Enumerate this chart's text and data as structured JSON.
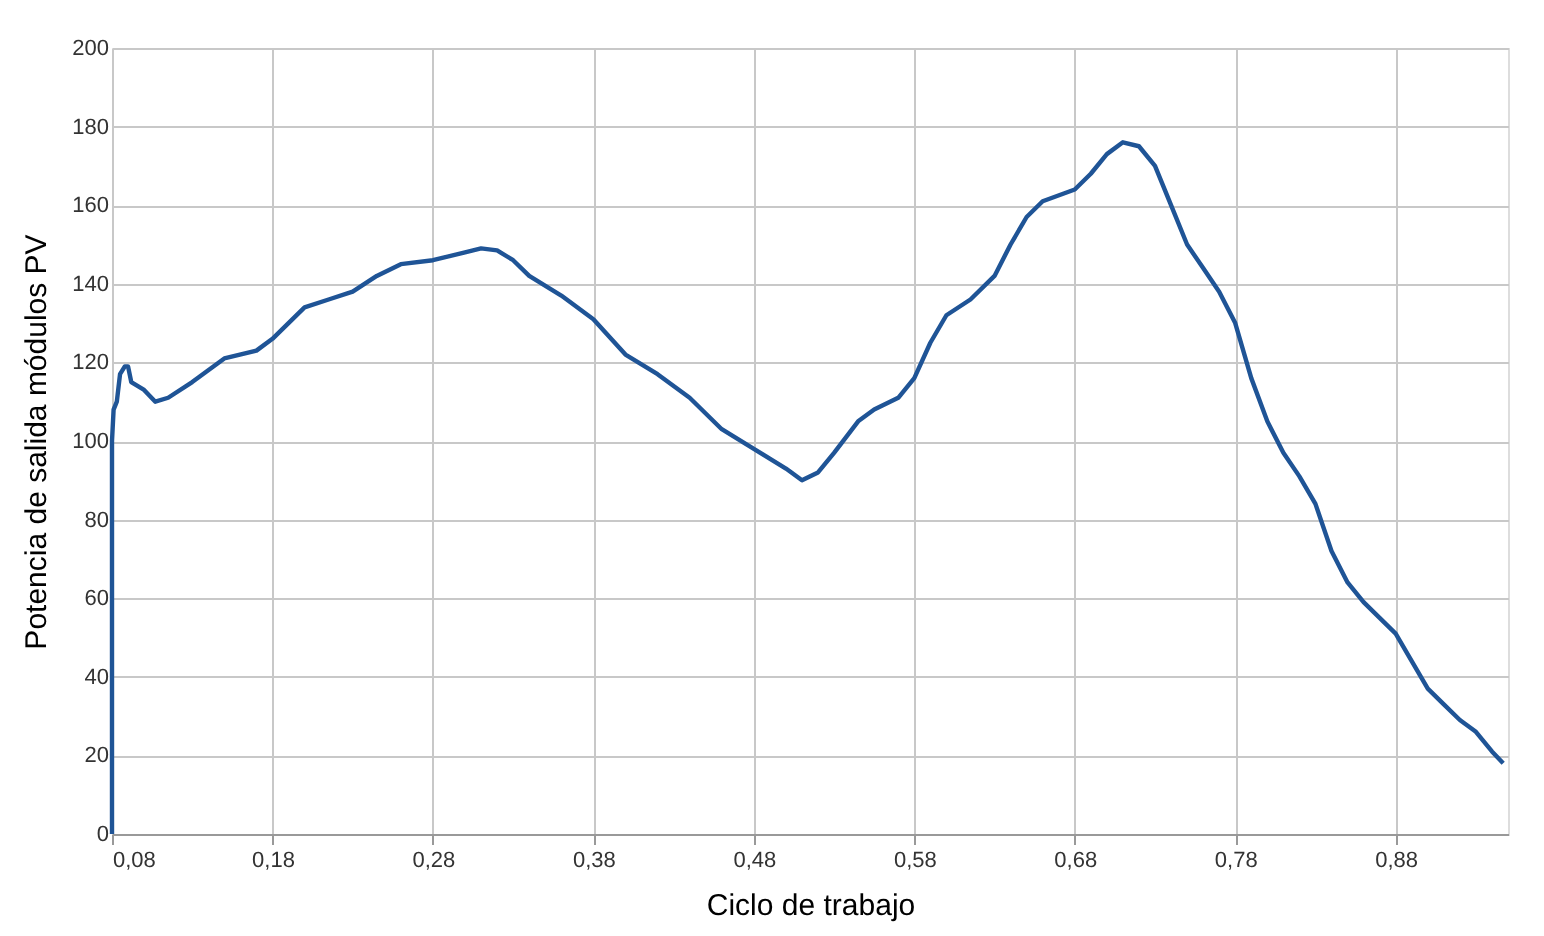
{
  "chart_data": {
    "type": "line",
    "xlabel": "Ciclo de trabajo",
    "ylabel": "Potencia de salida módulos PV",
    "x": [
      0.08,
      0.08,
      0.081,
      0.083,
      0.085,
      0.088,
      0.09,
      0.092,
      0.1,
      0.107,
      0.115,
      0.13,
      0.15,
      0.17,
      0.18,
      0.19,
      0.2,
      0.215,
      0.23,
      0.245,
      0.26,
      0.28,
      0.3,
      0.31,
      0.32,
      0.33,
      0.34,
      0.36,
      0.38,
      0.4,
      0.42,
      0.44,
      0.46,
      0.48,
      0.5,
      0.51,
      0.52,
      0.53,
      0.545,
      0.555,
      0.57,
      0.58,
      0.59,
      0.6,
      0.615,
      0.63,
      0.64,
      0.65,
      0.66,
      0.68,
      0.69,
      0.7,
      0.71,
      0.72,
      0.73,
      0.74,
      0.75,
      0.76,
      0.77,
      0.78,
      0.79,
      0.8,
      0.81,
      0.82,
      0.83,
      0.84,
      0.85,
      0.86,
      0.87,
      0.88,
      0.89,
      0.9,
      0.91,
      0.92,
      0.93,
      0.94,
      0.947
    ],
    "series": [
      {
        "color": "#1f5496",
        "values": [
          0,
          100,
          108,
          110,
          117,
          119,
          119,
          115,
          113,
          110,
          111,
          115,
          121,
          123,
          126,
          130,
          134,
          136,
          138,
          142,
          145,
          146,
          148,
          149,
          148.5,
          146,
          142,
          137,
          131,
          122,
          117,
          111,
          103,
          98,
          93,
          90,
          92,
          97,
          105,
          108,
          111,
          116,
          125,
          132,
          136,
          142,
          150,
          157,
          161,
          164,
          168,
          173,
          176,
          175,
          170,
          160,
          150,
          144,
          138,
          130,
          116,
          105,
          97,
          91,
          84,
          72,
          64,
          59,
          55,
          51,
          44,
          37,
          33,
          29,
          26,
          21,
          18
        ]
      }
    ],
    "xlim": [
      0.08,
      0.95
    ],
    "xticks": [
      {
        "value": 0.08,
        "label": "0,08"
      },
      {
        "value": 0.18,
        "label": "0,18"
      },
      {
        "value": 0.28,
        "label": "0,28"
      },
      {
        "value": 0.38,
        "label": "0,38"
      },
      {
        "value": 0.48,
        "label": "0,48"
      },
      {
        "value": 0.58,
        "label": "0,58"
      },
      {
        "value": 0.68,
        "label": "0,68"
      },
      {
        "value": 0.78,
        "label": "0,78"
      },
      {
        "value": 0.88,
        "label": "0,88"
      }
    ],
    "ylim": [
      0,
      200
    ],
    "yticks": [
      0,
      20,
      40,
      60,
      80,
      100,
      120,
      140,
      160,
      180,
      200
    ],
    "grid": true,
    "marker": "none",
    "line_style": "solid"
  }
}
